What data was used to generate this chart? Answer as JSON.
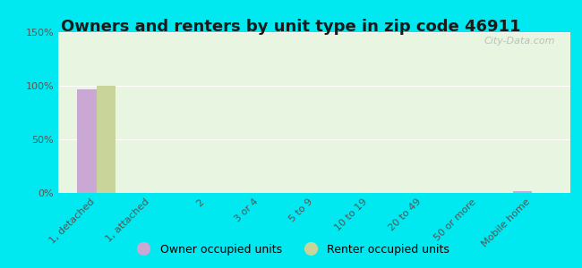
{
  "title": "Owners and renters by unit type in zip code 46911",
  "categories": [
    "1, detached",
    "1, attached",
    "2",
    "3 or 4",
    "5 to 9",
    "10 to 19",
    "20 to 49",
    "50 or more",
    "Mobile home"
  ],
  "owner_values": [
    97,
    0,
    0,
    0,
    0,
    0,
    0,
    0,
    2
  ],
  "renter_values": [
    100,
    0,
    0,
    0,
    0,
    0,
    0,
    0,
    0
  ],
  "owner_color": "#c9a8d4",
  "renter_color": "#c8d49a",
  "background_plot": "#e8f5e0",
  "background_outer": "#00e8f0",
  "ylim": [
    0,
    150
  ],
  "yticks": [
    0,
    50,
    100,
    150
  ],
  "ytick_labels": [
    "0%",
    "50%",
    "100%",
    "150%"
  ],
  "bar_width": 0.35,
  "legend_owner": "Owner occupied units",
  "legend_renter": "Renter occupied units",
  "watermark": "City-Data.com",
  "title_fontsize": 13,
  "tick_fontsize": 8,
  "legend_fontsize": 9
}
